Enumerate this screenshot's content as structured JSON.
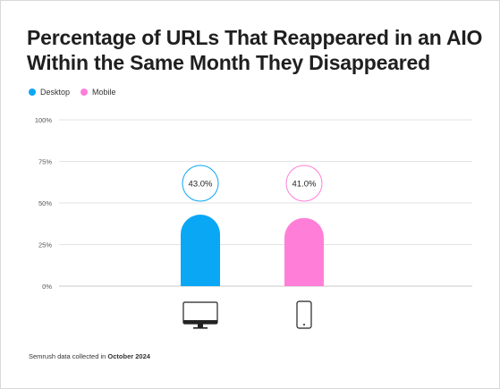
{
  "title": "Percentage of URLs That Reappeared in an AIO Within the Same Month They Disappeared",
  "legend": [
    {
      "label": "Desktop",
      "color": "#0aa7f5"
    },
    {
      "label": "Mobile",
      "color": "#ff7fd8"
    }
  ],
  "footnote": {
    "prefix": "Semrush data collected in",
    "date": "October 2024"
  },
  "chart_data": {
    "type": "bar",
    "categories": [
      "Desktop",
      "Mobile"
    ],
    "values": [
      43.0,
      41.0
    ],
    "value_labels": [
      "43.0%",
      "41.0%"
    ],
    "colors": [
      "#0aa7f5",
      "#ff7fd8"
    ],
    "icons": [
      "desktop-monitor-icon",
      "mobile-phone-icon"
    ],
    "ylim": [
      0,
      100
    ],
    "yticks": [
      0,
      25,
      50,
      75,
      100
    ],
    "ytick_labels": [
      "0%",
      "25%",
      "50%",
      "75%",
      "100%"
    ],
    "grid": true,
    "legend_position": "top-left"
  }
}
